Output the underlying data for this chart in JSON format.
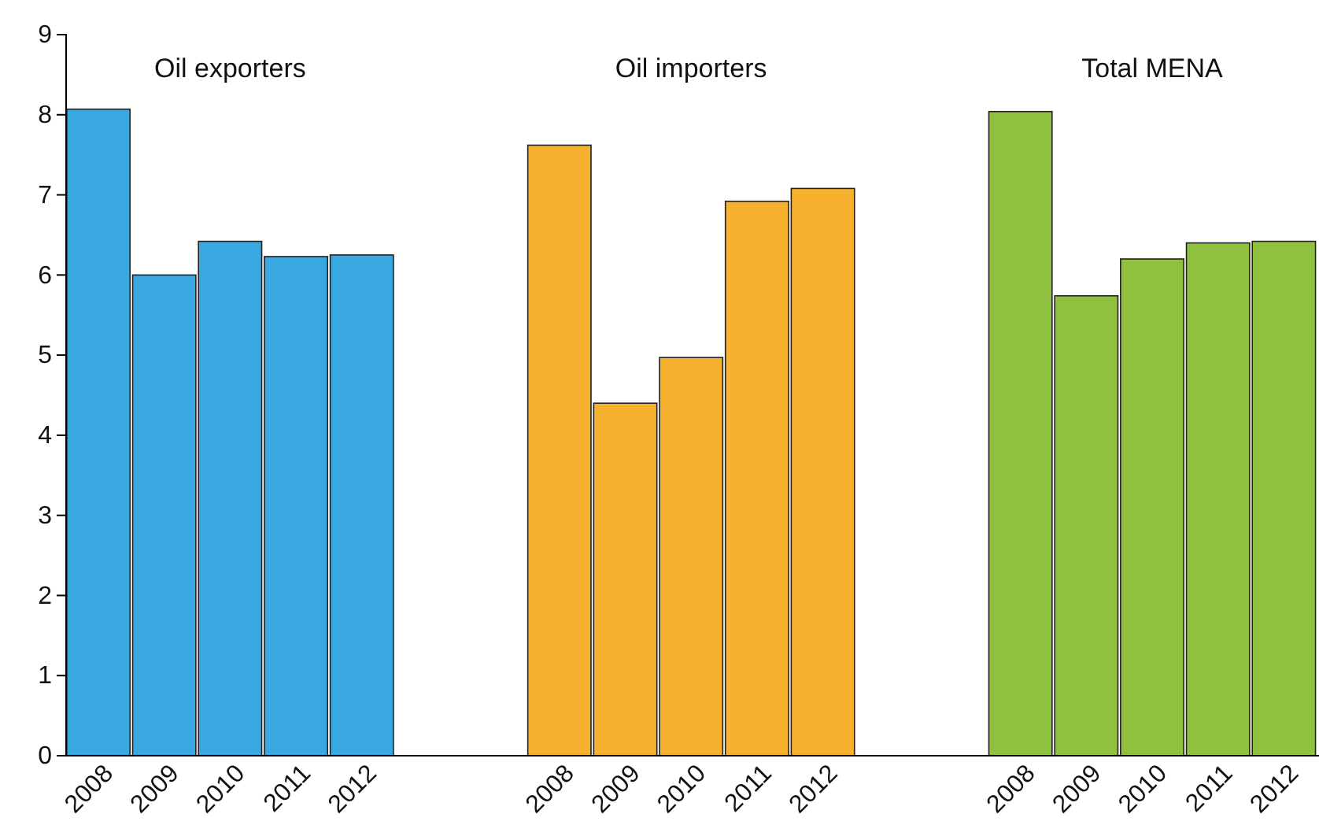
{
  "chart_data": {
    "type": "bar",
    "categories": [
      "2008",
      "2009",
      "2010",
      "2011",
      "2012",
      null,
      null,
      "2008",
      "2009",
      "2010",
      "2011",
      "2012",
      null,
      null,
      "2008",
      "2009",
      "2010",
      "2011",
      "2012"
    ],
    "series": [
      {
        "name": "Oil exporters",
        "color": "#3aa8e0",
        "values": [
          8.07,
          6.0,
          6.42,
          6.23,
          6.25,
          null,
          null,
          null,
          null,
          null,
          null,
          null,
          null,
          null,
          null,
          null,
          null,
          null,
          null
        ]
      },
      {
        "name": "Oil importers",
        "color": "#f6b12f",
        "values": [
          null,
          null,
          null,
          null,
          null,
          null,
          null,
          7.62,
          4.4,
          4.97,
          6.92,
          7.08,
          null,
          null,
          null,
          null,
          null,
          null,
          null
        ]
      },
      {
        "name": "Total MENA",
        "color": "#8fc03f",
        "values": [
          null,
          null,
          null,
          null,
          null,
          null,
          null,
          null,
          null,
          null,
          null,
          null,
          null,
          null,
          8.04,
          5.74,
          6.2,
          6.4,
          6.42
        ]
      }
    ],
    "ylim": [
      0,
      9
    ],
    "yticks": [
      0,
      1,
      2,
      3,
      4,
      5,
      6,
      7,
      8,
      9
    ],
    "grid": false
  }
}
